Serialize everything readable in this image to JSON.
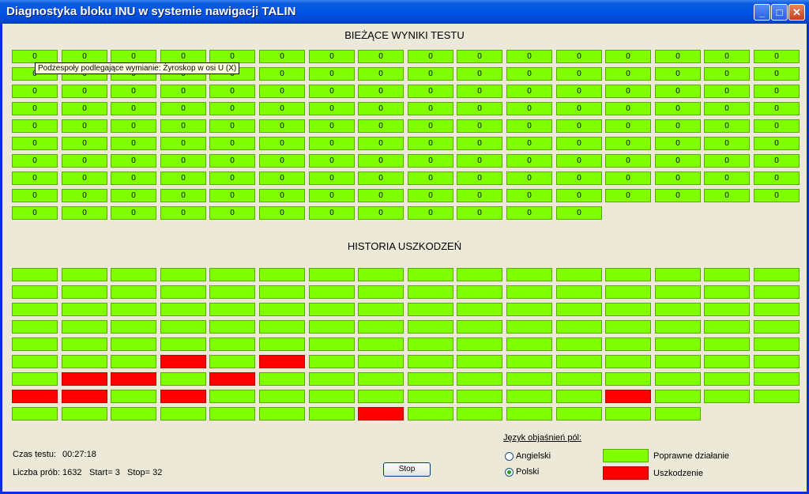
{
  "window": {
    "title": "Diagnostyka bloku INU w systemie nawigacji TALIN",
    "buttons": {
      "minimize": "_",
      "maximize": "□",
      "close": "✕"
    }
  },
  "current_results": {
    "title": "BIEŻĄCE WYNIKI TESTU",
    "columns": 16,
    "rows": [
      [
        "0",
        "0",
        "0",
        "0",
        "0",
        "0",
        "0",
        "0",
        "0",
        "0",
        "0",
        "0",
        "0",
        "0",
        "0",
        "0"
      ],
      [
        "0",
        "0",
        "0",
        "0",
        "0",
        "0",
        "0",
        "0",
        "0",
        "0",
        "0",
        "0",
        "0",
        "0",
        "0",
        "0"
      ],
      [
        "0",
        "0",
        "0",
        "0",
        "0",
        "0",
        "0",
        "0",
        "0",
        "0",
        "0",
        "0",
        "0",
        "0",
        "0",
        "0"
      ],
      [
        "0",
        "0",
        "0",
        "0",
        "0",
        "0",
        "0",
        "0",
        "0",
        "0",
        "0",
        "0",
        "0",
        "0",
        "0",
        "0"
      ],
      [
        "0",
        "0",
        "0",
        "0",
        "0",
        "0",
        "0",
        "0",
        "0",
        "0",
        "0",
        "0",
        "0",
        "0",
        "0",
        "0"
      ],
      [
        "0",
        "0",
        "0",
        "0",
        "0",
        "0",
        "0",
        "0",
        "0",
        "0",
        "0",
        "0",
        "0",
        "0",
        "0",
        "0"
      ],
      [
        "0",
        "0",
        "0",
        "0",
        "0",
        "0",
        "0",
        "0",
        "0",
        "0",
        "0",
        "0",
        "0",
        "0",
        "0",
        "0"
      ],
      [
        "0",
        "0",
        "0",
        "0",
        "0",
        "0",
        "0",
        "0",
        "0",
        "0",
        "0",
        "0",
        "0",
        "0",
        "0",
        "0"
      ],
      [
        "0",
        "0",
        "0",
        "0",
        "0",
        "0",
        "0",
        "0",
        "0",
        "0",
        "0",
        "0",
        "0",
        "0",
        "0",
        "0"
      ],
      [
        "0",
        "0",
        "0",
        "0",
        "0",
        "0",
        "0",
        "0",
        "0",
        "0",
        "0",
        "0"
      ]
    ],
    "tooltip": "Podzespoły podlegające wymianie: Żyroskop w osi U (X)"
  },
  "fault_history": {
    "title": "HISTORIA USZKODZEŃ",
    "columns": 16,
    "rows": [
      [
        0,
        0,
        0,
        0,
        0,
        0,
        0,
        0,
        0,
        0,
        0,
        0,
        0,
        0,
        0,
        0
      ],
      [
        0,
        0,
        0,
        0,
        0,
        0,
        0,
        0,
        0,
        0,
        0,
        0,
        0,
        0,
        0,
        0
      ],
      [
        0,
        0,
        0,
        0,
        0,
        0,
        0,
        0,
        0,
        0,
        0,
        0,
        0,
        0,
        0,
        0
      ],
      [
        0,
        0,
        0,
        0,
        0,
        0,
        0,
        0,
        0,
        0,
        0,
        0,
        0,
        0,
        0,
        0
      ],
      [
        0,
        0,
        0,
        0,
        0,
        0,
        0,
        0,
        0,
        0,
        0,
        0,
        0,
        0,
        0,
        0
      ],
      [
        0,
        0,
        0,
        1,
        0,
        1,
        0,
        0,
        0,
        0,
        0,
        0,
        0,
        0,
        0,
        0
      ],
      [
        0,
        1,
        1,
        0,
        1,
        0,
        0,
        0,
        0,
        0,
        0,
        0,
        0,
        0,
        0,
        0
      ],
      [
        1,
        1,
        0,
        1,
        0,
        0,
        0,
        0,
        0,
        0,
        0,
        0,
        1,
        0,
        0,
        0
      ],
      [
        0,
        0,
        0,
        0,
        0,
        0,
        0,
        1,
        0,
        0,
        0,
        0,
        0,
        0
      ]
    ]
  },
  "status": {
    "test_time_label": "Czas testu:",
    "test_time_value": "00:27:18",
    "trials_label": "Liczba prób:",
    "trials_value": "1632",
    "start_label": "Start= 3",
    "stop_label": "Stop= 32"
  },
  "stop_button": "Stop",
  "language": {
    "heading": "Język objaśnień pól:",
    "options": [
      "Angielski",
      "Polski"
    ],
    "selected": "Polski"
  },
  "legend": {
    "ok_label": "Poprawne działanie",
    "fault_label": "Uszkodzenie",
    "ok_color": "#80ff00",
    "fault_color": "#ff0000"
  }
}
